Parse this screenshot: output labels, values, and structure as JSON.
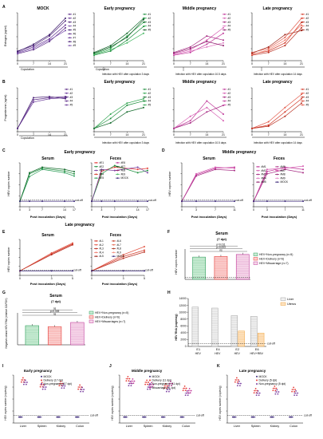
{
  "panel_letters": {
    "A": "A",
    "B": "B",
    "C": "C",
    "D": "D",
    "E": "E",
    "F": "F",
    "G": "G",
    "H": "H",
    "I": "I",
    "J": "J",
    "K": "K"
  },
  "row_a": {
    "mock_title": "MOCK",
    "early_title": "Early pregnancy",
    "middle_title": "Middle pregnancy",
    "late_title": "Late pregnancy",
    "ylabel": "Estrogen (pg/ml)",
    "xticks": [
      "0",
      "7",
      "14",
      "21"
    ],
    "copulation": "Copulation",
    "early_note": "Infection with HEV after copulation 3 days",
    "middle_note": "Infection with HEV after copulation 10.5 days",
    "late_note": "Infection with HEV after copulation 14 days"
  },
  "row_b": {
    "early_title": "Early pregnancy",
    "middle_title": "Middle pregnancy",
    "late_title": "Late pregnancy",
    "ylabel": "Progesterone (ng/ml)",
    "copulation": "Copulation",
    "early_note": "Infection with HEV after copulation 3 days",
    "middle_note": "Infection with HEV after copulation 10.5 days",
    "late_note": "Infection with HEV after copulation 14 days"
  },
  "row_c": {
    "title": "Early pregnancy",
    "serum_title": "Serum",
    "feces_title": "Feces",
    "ylabel": "HEV copies number",
    "xlabel": "Post inoculation (Days)",
    "xticks": [
      "0",
      "3",
      "7",
      "14",
      "17"
    ],
    "cutoff": "cut-off",
    "legend": [
      "#E1",
      "#E2",
      "#E3",
      "#E4",
      "#E5",
      "#E6",
      "#E7",
      "#E8",
      "#E9",
      "MOCK"
    ]
  },
  "row_d": {
    "title": "Middle pregnancy",
    "serum_title": "Serum",
    "feces_title": "Feces",
    "ylabel": "HEV copies number",
    "xlabel": "Post inoculation (Days)",
    "xticks": [
      "0",
      "3",
      "7",
      "11"
    ],
    "cutoff": "cut-off",
    "legend": [
      "#M1",
      "#M2",
      "#M3",
      "#M4",
      "#M5",
      "#M6",
      "#M7",
      "#M8",
      "#M9",
      "MOCK"
    ]
  },
  "row_e": {
    "title": "Late pregnancy",
    "serum_title": "Serum",
    "feces_title": "Feces",
    "ylabel": "HEV copies number",
    "xlabel": "Post inoculation (Days)",
    "xticks": [
      "0",
      "3",
      "5"
    ],
    "cutoff": "cut-off",
    "legend": [
      "#L1",
      "#L2",
      "#L3",
      "#L4",
      "#L5",
      "#L6",
      "#L7",
      "#L8",
      "#L9",
      "MOCK"
    ]
  },
  "panel_f": {
    "title": "Serum",
    "subtitle": "(7 dpi)",
    "ylabel": "HEV copies number",
    "sig1": "p=0.011",
    "sig2": "p=0.003",
    "sig3": "ns",
    "legend": [
      "HEV+Non-pregnancy (n=5)",
      "HEV+Delivery (n=6)",
      "HEV+Miscarriage (n=7)"
    ]
  },
  "panel_g": {
    "title": "Serum",
    "subtitle": "(7 dpi)",
    "ylabel": "Negative-strand HEV RNA (relative GAPDH)",
    "sig1": "ns",
    "sig2": "p=0.045",
    "sig3": "ns",
    "legend": [
      "HEV+Non-pregnancy (n=5)",
      "HEV+Delivery (n=6)",
      "HEV+Miscarriages (n=7)"
    ]
  },
  "panel_h": {
    "ylabel": "HEV RNA (copies/g)",
    "yticks": [
      "0",
      "2000",
      "4000",
      "6000",
      "8000",
      "10000",
      "12000",
      "14000"
    ],
    "categories": [
      "E1",
      "E4",
      "E2",
      "E6"
    ],
    "group1": "HEV",
    "group2": "HEV",
    "group3": "HEV",
    "group4": "HEV+RBV",
    "cutoff": "cut-off",
    "legend": [
      "Liver",
      "Uterus"
    ]
  },
  "panel_i": {
    "title": "Early pregnancy",
    "ylabel": "HEV copies number (copies/g)",
    "xticks": [
      "Liver",
      "Spleen",
      "Kidney",
      "Colon"
    ],
    "cutoff": "cut-off",
    "legend": [
      "MOCK",
      "Delivery (17 dpi)",
      "Non-pregnancy (17 dpi)"
    ]
  },
  "panel_j": {
    "title": "Middle pregnancy",
    "ylabel": "HEV copies number (copies/g)",
    "xticks": [
      "Liver",
      "Spleen",
      "Kidney",
      "Colon"
    ],
    "cutoff": "cut-off",
    "legend": [
      "MOCK",
      "Delivery (11 dpi)",
      "Non-pregnancy (11 dpi)",
      "Miscarriage (11 dpi)"
    ]
  },
  "panel_k": {
    "title": "Late pregnancy",
    "ylabel": "HEV copies number (copies/g)",
    "xticks": [
      "Liver",
      "Spleen",
      "Kidney",
      "Colon"
    ],
    "cutoff": "cut-off",
    "legend": [
      "MOCK",
      "Delivery (5 dpi)",
      "Non-pregnancy (5 dpi)"
    ]
  },
  "colors": {
    "mock": "#5b2a86",
    "early": "#1e8f3e",
    "middle": "#c0399a",
    "late": "#d43b2a",
    "red": "#e53935",
    "purple": "#7b3fa0",
    "green": "#2e9e5a",
    "orange": "#f0a23a",
    "grey": "#9e9e9e"
  },
  "chart_data": [
    {
      "panel": "A-mock",
      "type": "line",
      "x": [
        0,
        7,
        14,
        21
      ],
      "series": [
        {
          "values": [
            10,
            16,
            28,
            48
          ]
        },
        {
          "values": [
            12,
            20,
            32,
            52
          ]
        },
        {
          "values": [
            14,
            22,
            36,
            58
          ]
        },
        {
          "values": [
            11,
            18,
            30,
            44
          ]
        },
        {
          "values": [
            13,
            24,
            38,
            62
          ]
        }
      ]
    },
    {
      "panel": "A-early",
      "type": "line",
      "x": [
        0,
        7,
        14,
        21
      ],
      "series": [
        {
          "values": [
            8,
            14,
            30,
            50
          ]
        },
        {
          "values": [
            10,
            18,
            36,
            56
          ]
        },
        {
          "values": [
            12,
            22,
            40,
            62
          ]
        },
        {
          "values": [
            9,
            16,
            26,
            40
          ]
        },
        {
          "values": [
            11,
            20,
            34,
            60
          ]
        }
      ]
    },
    {
      "panel": "A-middle",
      "type": "line",
      "x": [
        0,
        7,
        14,
        21
      ],
      "series": [
        {
          "values": [
            8,
            12,
            24,
            40
          ]
        },
        {
          "values": [
            10,
            16,
            30,
            48
          ]
        },
        {
          "values": [
            12,
            20,
            36,
            30
          ]
        },
        {
          "values": [
            9,
            14,
            20,
            26
          ]
        },
        {
          "values": [
            11,
            18,
            28,
            22
          ]
        }
      ]
    },
    {
      "panel": "A-late",
      "type": "line",
      "x": [
        0,
        7,
        14,
        21
      ],
      "series": [
        {
          "values": [
            10,
            14,
            26,
            56
          ]
        },
        {
          "values": [
            12,
            18,
            34,
            62
          ]
        },
        {
          "values": [
            8,
            12,
            22,
            48
          ]
        },
        {
          "values": [
            9,
            16,
            30,
            52
          ]
        },
        {
          "values": [
            11,
            20,
            38,
            44
          ]
        }
      ]
    },
    {
      "panel": "B-mock",
      "type": "line",
      "x": [
        0,
        7,
        14,
        21
      ],
      "series": [
        {
          "values": [
            0.3,
            2.9,
            3.1,
            3.2
          ]
        },
        {
          "values": [
            0.3,
            2.7,
            3.0,
            3.1
          ]
        },
        {
          "values": [
            0.3,
            3.1,
            3.2,
            3.0
          ]
        }
      ]
    },
    {
      "panel": "B-early",
      "type": "line",
      "x": [
        0,
        7,
        14,
        21
      ],
      "series": [
        {
          "values": [
            0.3,
            1.2,
            2.4,
            2.8
          ]
        },
        {
          "values": [
            0.3,
            1.6,
            2.6,
            3.0
          ]
        },
        {
          "values": [
            0.3,
            0.8,
            1.8,
            2.2
          ]
        }
      ]
    },
    {
      "panel": "B-middle",
      "type": "line",
      "x": [
        0,
        7,
        14,
        21
      ],
      "series": [
        {
          "values": [
            0.3,
            1.0,
            2.8,
            1.6
          ]
        },
        {
          "values": [
            0.3,
            1.4,
            2.2,
            1.0
          ]
        },
        {
          "values": [
            0.3,
            0.8,
            1.8,
            2.4
          ]
        }
      ]
    },
    {
      "panel": "B-late",
      "type": "line",
      "x": [
        0,
        7,
        14,
        21
      ],
      "series": [
        {
          "values": [
            0.3,
            0.6,
            1.8,
            3.0
          ]
        },
        {
          "values": [
            0.3,
            0.9,
            2.2,
            3.4
          ]
        },
        {
          "values": [
            0.3,
            0.5,
            1.4,
            2.6
          ]
        }
      ]
    },
    {
      "panel": "C-serum",
      "type": "line",
      "x": [
        0,
        3,
        7,
        14,
        17
      ],
      "series": [
        {
          "values": [
            1,
            6,
            7,
            6.5,
            6
          ]
        },
        {
          "values": [
            1,
            5.5,
            6.8,
            6.2,
            5.6
          ]
        },
        {
          "values": [
            1,
            6.2,
            7.2,
            6.8,
            6.4
          ]
        },
        {
          "values": [
            1,
            1,
            1,
            1,
            1
          ]
        }
      ]
    },
    {
      "panel": "C-feces",
      "type": "line",
      "x": [
        0,
        3,
        7,
        14,
        17
      ],
      "series": [
        {
          "values": [
            1,
            6.5,
            7.2,
            6.8,
            7
          ]
        },
        {
          "values": [
            1,
            6,
            7.5,
            6.2,
            6.6
          ]
        },
        {
          "values": [
            1,
            6.8,
            6.6,
            7.2,
            6.2
          ]
        },
        {
          "values": [
            1,
            1,
            1,
            1,
            1
          ]
        }
      ]
    },
    {
      "panel": "D-serum",
      "type": "line",
      "x": [
        0,
        3,
        7,
        11
      ],
      "series": [
        {
          "values": [
            1,
            5.8,
            7,
            7.2
          ]
        },
        {
          "values": [
            1,
            6,
            7.2,
            7
          ]
        },
        {
          "values": [
            1,
            5.6,
            6.8,
            6.6
          ]
        },
        {
          "values": [
            1,
            1,
            1,
            1
          ]
        }
      ]
    },
    {
      "panel": "D-feces",
      "type": "line",
      "x": [
        0,
        3,
        7,
        11
      ],
      "series": [
        {
          "values": [
            1,
            6.4,
            7.2,
            6.8
          ]
        },
        {
          "values": [
            1,
            6.8,
            7,
            7.4
          ]
        },
        {
          "values": [
            1,
            6,
            6.8,
            6.2
          ]
        },
        {
          "values": [
            1,
            1,
            1,
            1
          ]
        }
      ]
    },
    {
      "panel": "E-serum",
      "type": "line",
      "x": [
        0,
        3,
        5
      ],
      "series": [
        {
          "values": [
            1,
            4.8,
            7
          ]
        },
        {
          "values": [
            1,
            5,
            7.2
          ]
        },
        {
          "values": [
            1,
            4.6,
            6.8
          ]
        },
        {
          "values": [
            1,
            1,
            1
          ]
        }
      ]
    },
    {
      "panel": "E-feces",
      "type": "line",
      "x": [
        0,
        3,
        5
      ],
      "series": [
        {
          "values": [
            1,
            4.2,
            5.6
          ]
        },
        {
          "values": [
            1,
            4.6,
            6.4
          ]
        },
        {
          "values": [
            1,
            3.8,
            5.2
          ]
        },
        {
          "values": [
            1,
            1,
            1
          ]
        }
      ]
    },
    {
      "panel": "F",
      "type": "bar",
      "categories": [
        "HEV+Non-pregnancy",
        "HEV+Delivery",
        "HEV+Miscarriage"
      ],
      "values": [
        6.6,
        6.8,
        7.4
      ]
    },
    {
      "panel": "G",
      "type": "bar",
      "categories": [
        "HEV+Non-pregnancy",
        "HEV+Delivery",
        "HEV+Miscarriages"
      ],
      "values": [
        0.9,
        0.85,
        1.05
      ]
    },
    {
      "panel": "H",
      "type": "bar",
      "categories": [
        "E1",
        "E4",
        "E2",
        "E6"
      ],
      "series": [
        {
          "name": "Liver",
          "values": [
            11500,
            11200,
            9000,
            8800
          ]
        },
        {
          "name": "Uterus",
          "values": [
            0,
            0,
            4500,
            3900
          ]
        }
      ],
      "ylim": [
        0,
        14000
      ]
    },
    {
      "panel": "I",
      "type": "scatter",
      "categories": [
        "Liver",
        "Spleen",
        "Kidney",
        "Colon"
      ],
      "series": [
        {
          "name": "MOCK",
          "values": [
            1,
            1,
            1,
            1
          ]
        },
        {
          "name": "Delivery (17 dpi)",
          "values": [
            7.2,
            6.4,
            6.6,
            6.0
          ]
        },
        {
          "name": "Non-pregnancy (17 dpi)",
          "values": [
            6.8,
            6.0,
            6.2,
            5.6
          ]
        }
      ]
    },
    {
      "panel": "J",
      "type": "scatter",
      "categories": [
        "Liver",
        "Spleen",
        "Kidney",
        "Colon"
      ],
      "series": [
        {
          "name": "MOCK",
          "values": [
            1,
            1,
            1,
            1
          ]
        },
        {
          "name": "Delivery (11 dpi)",
          "values": [
            7.4,
            6.8,
            6.2,
            5.8
          ]
        },
        {
          "name": "Non-pregnancy (11 dpi)",
          "values": [
            6.6,
            6.0,
            5.6,
            5.0
          ]
        },
        {
          "name": "Miscarriage (11 dpi)",
          "values": [
            7.0,
            6.4,
            6.6,
            5.4
          ]
        }
      ]
    },
    {
      "panel": "K",
      "type": "scatter",
      "categories": [
        "Liver",
        "Spleen",
        "Kidney",
        "Colon"
      ],
      "series": [
        {
          "name": "MOCK",
          "values": [
            1,
            1,
            1,
            1
          ]
        },
        {
          "name": "Delivery (5 dpi)",
          "values": [
            7.2,
            5.4,
            5.8,
            5.6
          ]
        },
        {
          "name": "Non-pregnancy (5 dpi)",
          "values": [
            6.6,
            5.0,
            5.2,
            5.0
          ]
        }
      ]
    }
  ]
}
